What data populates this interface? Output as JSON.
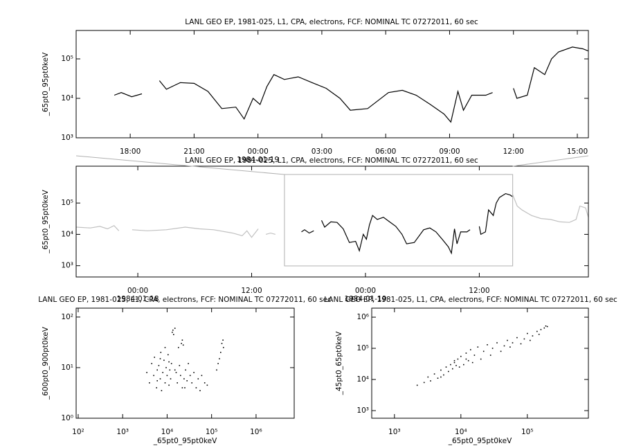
{
  "chart_data": [
    {
      "type": "line",
      "title": "LANL GEO EP, 1981-025, L1, CPA, electrons, FCF: NOMINAL TC 07272011, 60 sec",
      "ylabel": "_65pt0_95pt0keV",
      "yscale": "log",
      "color": "#000000",
      "x": [
        -6.75,
        -6.42,
        -5.93,
        -5.45,
        -5.0,
        -4.63,
        -4.3,
        -3.65,
        -3.0,
        -2.35,
        -1.7,
        -1.04,
        -0.65,
        -0.23,
        0.1,
        0.42,
        0.75,
        1.24,
        1.89,
        2.54,
        3.2,
        3.85,
        4.34,
        5.15,
        6.13,
        6.78,
        7.43,
        8.09,
        8.74,
        9.06,
        9.39,
        9.65,
        10.04,
        10.7,
        11.02,
        11.5,
        12.0,
        12.16,
        12.65,
        12.98,
        13.47,
        13.79,
        14.12,
        14.77,
        15.26,
        15.5
      ],
      "values": [
        12000,
        14000,
        11000,
        13000,
        null,
        28000,
        17000,
        25000,
        24000,
        15000,
        5500,
        6000,
        3000,
        10000,
        7000,
        20000,
        40000,
        30000,
        35000,
        25000,
        18000,
        10000,
        5000,
        5500,
        14000,
        16000,
        12000,
        7000,
        4000,
        2500,
        15000,
        5000,
        12000,
        12000,
        14000,
        null,
        18000,
        10000,
        12000,
        60000,
        40000,
        100000,
        150000,
        200000,
        180000,
        160000
      ],
      "xlim": [
        -8.54,
        15.52
      ],
      "xticks": [
        {
          "value": -6,
          "label": "18:00"
        },
        {
          "value": -3,
          "label": "21:00"
        },
        {
          "value": 0,
          "label": "00:00"
        },
        {
          "value": 3,
          "label": "03:00"
        },
        {
          "value": 6,
          "label": "06:00"
        },
        {
          "value": 9,
          "label": "09:00"
        },
        {
          "value": 12,
          "label": "12:00"
        },
        {
          "value": 15,
          "label": "15:00"
        }
      ],
      "xtick_dates": [
        {
          "value": 0,
          "label": "1984-01-19"
        }
      ],
      "ylim": [
        1000,
        525000
      ],
      "yticks": [
        {
          "value": 1000,
          "label": "10³"
        },
        {
          "value": 10000,
          "label": "10⁴"
        },
        {
          "value": 100000,
          "label": "10⁵"
        }
      ]
    },
    {
      "type": "line",
      "title": "LANL GEO EP, 1981-025, L1, CPA, electrons, FCF: NOMINAL TC 07272011, 60 sec",
      "ylabel": "_65pt0_95pt0keV",
      "yscale": "log",
      "series": [
        {
          "color": "#c0c0c0",
          "x": [
            -30.5,
            -29,
            -28,
            -27.2,
            -26.5,
            -26,
            -25.7,
            -24.6,
            -23,
            -21,
            -19,
            -17.5,
            -16,
            -14,
            -13,
            -12.5,
            -12,
            -11.3,
            -11,
            -10.5,
            -10,
            -9.5,
            -9,
            15.5,
            16,
            16.5,
            17.5,
            18.5,
            19.5,
            20.5,
            21.5,
            22.2,
            22.6,
            23.2,
            23.5
          ],
          "values": [
            17000,
            16000,
            18000,
            15000,
            19000,
            13000,
            null,
            14000,
            13000,
            14000,
            17000,
            15000,
            14000,
            11000,
            9000,
            13000,
            8000,
            15000,
            null,
            10000,
            11000,
            10000,
            null,
            190000,
            80000,
            60000,
            40000,
            32000,
            30000,
            25000,
            24000,
            30000,
            80000,
            70000,
            35000
          ]
        },
        {
          "color": "#000000",
          "x": [
            -6.75,
            -6.42,
            -5.93,
            -5.45,
            -5.0,
            -4.63,
            -4.3,
            -3.65,
            -3.0,
            -2.35,
            -1.7,
            -1.04,
            -0.65,
            -0.23,
            0.1,
            0.42,
            0.75,
            1.24,
            1.89,
            2.54,
            3.2,
            3.85,
            4.34,
            5.15,
            6.13,
            6.78,
            7.43,
            8.09,
            8.74,
            9.06,
            9.39,
            9.65,
            10.04,
            10.7,
            11.02,
            11.5,
            12.0,
            12.16,
            12.65,
            12.98,
            13.47,
            13.79,
            14.12,
            14.77,
            15.26,
            15.5
          ],
          "values": [
            12000,
            14000,
            11000,
            13000,
            null,
            28000,
            17000,
            25000,
            24000,
            15000,
            5500,
            6000,
            3000,
            10000,
            7000,
            20000,
            40000,
            30000,
            35000,
            25000,
            18000,
            10000,
            5000,
            5500,
            14000,
            16000,
            12000,
            7000,
            4000,
            2500,
            15000,
            5000,
            12000,
            12000,
            14000,
            null,
            18000,
            10000,
            12000,
            60000,
            40000,
            100000,
            150000,
            200000,
            180000,
            160000
          ]
        }
      ],
      "xlim": [
        -30.5,
        23.5
      ],
      "xticks": [
        {
          "value": -24,
          "label": "00:00"
        },
        {
          "value": -12,
          "label": "12:00"
        },
        {
          "value": 0,
          "label": "00:00"
        },
        {
          "value": 12,
          "label": "12:00"
        }
      ],
      "xtick_dates": [
        {
          "value": -24,
          "label": "1984-01-18"
        },
        {
          "value": 0,
          "label": "1984-01-19"
        }
      ],
      "ylim": [
        436,
        1500000
      ],
      "yticks": [
        {
          "value": 1000,
          "label": "10³"
        },
        {
          "value": 10000,
          "label": "10⁴"
        },
        {
          "value": 100000,
          "label": "10⁵"
        }
      ]
    },
    {
      "type": "scatter",
      "title": "LANL GEO EP, 1981-025, L1, CPA, electrons, FCF: NOMINAL TC 07272011, 60 sec",
      "xlabel": "_65pt0_95pt0keV",
      "ylabel": "_600pt0_900pt0keV",
      "xscale": "log",
      "yscale": "log",
      "color": "#000000",
      "x": [
        3500,
        4000,
        4500,
        5000,
        5200,
        5800,
        6000,
        6500,
        7000,
        7200,
        7500,
        8000,
        8500,
        9000,
        9500,
        10000,
        10500,
        11000,
        11500,
        12000,
        12500,
        13000,
        13500,
        14000,
        15000,
        16000,
        17000,
        18000,
        19000,
        20000,
        21000,
        22000,
        23000,
        24000,
        25000,
        26000,
        28000,
        30000,
        33000,
        36000,
        40000,
        45000,
        50000,
        55000,
        60000,
        70000,
        80000,
        130000,
        140000,
        150000,
        160000,
        170000,
        180000,
        185000,
        9000,
        7000,
        6000,
        11000,
        15000,
        22000
      ],
      "values": [
        8,
        5,
        12,
        7,
        16,
        4,
        9,
        11,
        6,
        20,
        3.5,
        8,
        14,
        5,
        10,
        7,
        18,
        4.5,
        9,
        6,
        12,
        50,
        55,
        45,
        60,
        8,
        5,
        25,
        11,
        7,
        30,
        35,
        28,
        6,
        4,
        9,
        5.5,
        12,
        7,
        5,
        8,
        4,
        6,
        3.5,
        7,
        5,
        4.5,
        9,
        12,
        15,
        20,
        30,
        35,
        25,
        25,
        15,
        5.5,
        13,
        9,
        4
      ],
      "xlim": [
        90,
        7200000
      ],
      "xticks": [
        {
          "value": 100,
          "label": "10²"
        },
        {
          "value": 1000,
          "label": "10³"
        },
        {
          "value": 10000,
          "label": "10⁴"
        },
        {
          "value": 100000,
          "label": "10⁵"
        },
        {
          "value": 1000000,
          "label": "10⁶"
        }
      ],
      "ylim": [
        1,
        150
      ],
      "yticks": [
        {
          "value": 1,
          "label": "10⁰"
        },
        {
          "value": 10,
          "label": "10¹"
        },
        {
          "value": 100,
          "label": "10²"
        }
      ]
    },
    {
      "type": "scatter",
      "title": "LANL GEO EP, 1981-025, L1, CPA, electrons, FCF: NOMINAL TC 07272011, 60 sec",
      "xlabel": "_65pt0_95pt0keV",
      "ylabel": "_45pt0_65pt0keV",
      "xscale": "log",
      "yscale": "log",
      "color": "#000000",
      "x": [
        2200,
        2800,
        3200,
        3500,
        4000,
        4500,
        5000,
        5500,
        6000,
        6500,
        7000,
        7500,
        8000,
        8500,
        9000,
        9500,
        10000,
        11000,
        12000,
        13000,
        14000,
        15000,
        16000,
        18000,
        20000,
        22000,
        25000,
        28000,
        30000,
        35000,
        40000,
        45000,
        50000,
        55000,
        60000,
        70000,
        80000,
        90000,
        100000,
        110000,
        120000,
        140000,
        160000,
        180000,
        200000,
        190000,
        150000,
        5000,
        8000,
        12000
      ],
      "values": [
        6500,
        8000,
        12000,
        9000,
        15000,
        11000,
        20000,
        14000,
        25000,
        18000,
        30000,
        22000,
        35000,
        28000,
        45000,
        25000,
        55000,
        30000,
        70000,
        40000,
        90000,
        35000,
        60000,
        110000,
        45000,
        80000,
        130000,
        60000,
        100000,
        150000,
        80000,
        120000,
        180000,
        110000,
        150000,
        220000,
        140000,
        200000,
        300000,
        180000,
        250000,
        350000,
        400000,
        450000,
        500000,
        520000,
        280000,
        12000,
        40000,
        45000
      ],
      "xlim": [
        455,
        830000
      ],
      "xticks": [
        {
          "value": 1000,
          "label": "10³"
        },
        {
          "value": 10000,
          "label": "10⁴"
        },
        {
          "value": 100000,
          "label": "10⁵"
        }
      ],
      "ylim": [
        570,
        1950000
      ],
      "yticks": [
        {
          "value": 1000,
          "label": "10³"
        },
        {
          "value": 10000,
          "label": "10⁴"
        },
        {
          "value": 100000,
          "label": "10⁵"
        },
        {
          "value": 1000000,
          "label": "10⁶"
        }
      ]
    }
  ]
}
